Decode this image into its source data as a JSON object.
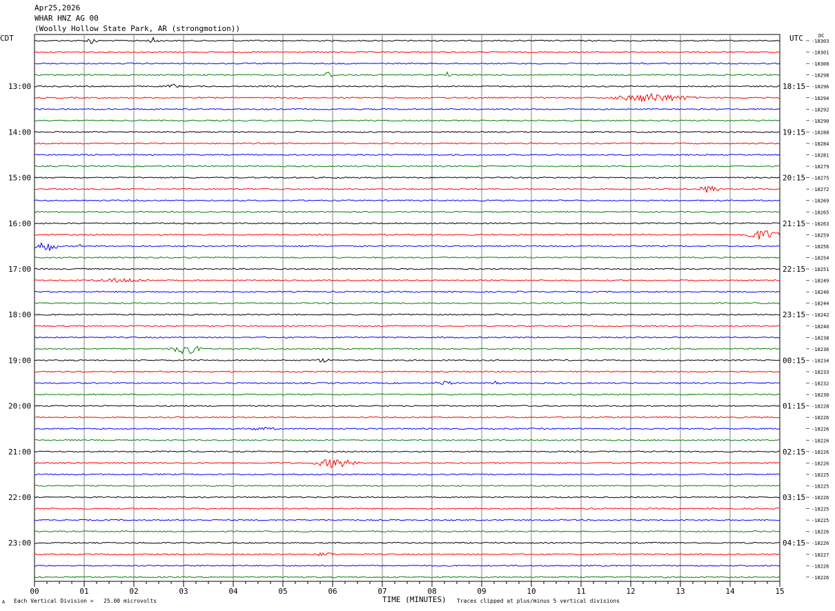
{
  "header": {
    "date": "Apr25,2026",
    "station": "WHAR HNZ AG 00",
    "location": "(Woolly Hollow State Park, AR (strongmotion))"
  },
  "left_label": "CDT",
  "right_label": "UTC",
  "dc_label": "DC",
  "footer": {
    "vertical_division": "Each Vertical Division =   25.00 microvolts",
    "xlabel": "TIME (MINUTES)",
    "clip_note": "Traces clipped at plus/minus 5 vertical divisions",
    "corner_mark": "A"
  },
  "colors": {
    "trace_cycle": [
      "#000000",
      "#ff0000",
      "#0000ff",
      "#007f00"
    ],
    "grid": "#808080"
  },
  "chart_data": {
    "type": "line",
    "title": "Apr25,2026 WHAR HNZ AG 00 (Woolly Hollow State Park, AR (strongmotion))",
    "xlabel": "TIME (MINUTES)",
    "xlim": [
      0,
      15
    ],
    "x_ticks": [
      "00",
      "01",
      "02",
      "03",
      "04",
      "05",
      "06",
      "07",
      "08",
      "09",
      "10",
      "11",
      "12",
      "13",
      "14",
      "15"
    ],
    "minor_ticks_per_minute": 4,
    "row_minutes": 15,
    "rows": 48,
    "left_hour_labels": [
      "13:00",
      "14:00",
      "15:00",
      "16:00",
      "17:00",
      "18:00",
      "19:00",
      "20:00",
      "21:00",
      "22:00",
      "23:00"
    ],
    "right_hour_labels": [
      "18:15",
      "19:15",
      "20:15",
      "21:15",
      "22:15",
      "23:15",
      "00:15",
      "01:15",
      "02:15",
      "03:15",
      "04:15"
    ],
    "first_labeled_row": 4,
    "dc_offsets": [
      "-18303",
      "-18301",
      "-18300",
      "-18298",
      "-18296",
      "-18294",
      "-18292",
      "-18290",
      "-18288",
      "-18284",
      "-18281",
      "-18279",
      "-18275",
      "-18272",
      "-18269",
      "-18265",
      "-18263",
      "-18259",
      "-18256",
      "-18254",
      "-18251",
      "-18249",
      "-18246",
      "-18244",
      "-18242",
      "-18240",
      "-18238",
      "-18236",
      "-18234",
      "-18233",
      "-18232",
      "-18230",
      "-18228",
      "-18226",
      "-18226",
      "-18226",
      "-18226",
      "-18226",
      "-18225",
      "-18225",
      "-18226",
      "-18225",
      "-18225",
      "-18226",
      "-18226",
      "-18227",
      "-18226",
      "-18226"
    ],
    "events": [
      {
        "row": 0,
        "minute": 1.05,
        "duration": 0.2,
        "amplitude": 5
      },
      {
        "row": 0,
        "minute": 2.3,
        "duration": 0.2,
        "amplitude": 4
      },
      {
        "row": 3,
        "minute": 5.8,
        "duration": 0.2,
        "amplitude": 5
      },
      {
        "row": 3,
        "minute": 8.3,
        "duration": 0.05,
        "amplitude": 6
      },
      {
        "row": 4,
        "minute": 2.7,
        "duration": 0.2,
        "amplitude": 3
      },
      {
        "row": 5,
        "minute": 11.8,
        "duration": 1.3,
        "amplitude": 6
      },
      {
        "row": 13,
        "minute": 13.4,
        "duration": 0.35,
        "amplitude": 6
      },
      {
        "row": 17,
        "minute": 14.3,
        "duration": 0.7,
        "amplitude": 7
      },
      {
        "row": 18,
        "minute": 0.0,
        "duration": 0.45,
        "amplitude": 8
      },
      {
        "row": 18,
        "minute": 0.9,
        "duration": 0.05,
        "amplitude": 4
      },
      {
        "row": 21,
        "minute": 1.3,
        "duration": 0.9,
        "amplitude": 3
      },
      {
        "row": 27,
        "minute": 2.8,
        "duration": 0.5,
        "amplitude": 8
      },
      {
        "row": 28,
        "minute": 5.7,
        "duration": 0.2,
        "amplitude": 3
      },
      {
        "row": 30,
        "minute": 8.1,
        "duration": 0.3,
        "amplitude": 3
      },
      {
        "row": 30,
        "minute": 9.2,
        "duration": 0.15,
        "amplitude": 3
      },
      {
        "row": 34,
        "minute": 4.3,
        "duration": 0.5,
        "amplitude": 2
      },
      {
        "row": 37,
        "minute": 5.7,
        "duration": 0.7,
        "amplitude": 7
      },
      {
        "row": 45,
        "minute": 5.7,
        "duration": 0.3,
        "amplitude": 3
      }
    ]
  }
}
